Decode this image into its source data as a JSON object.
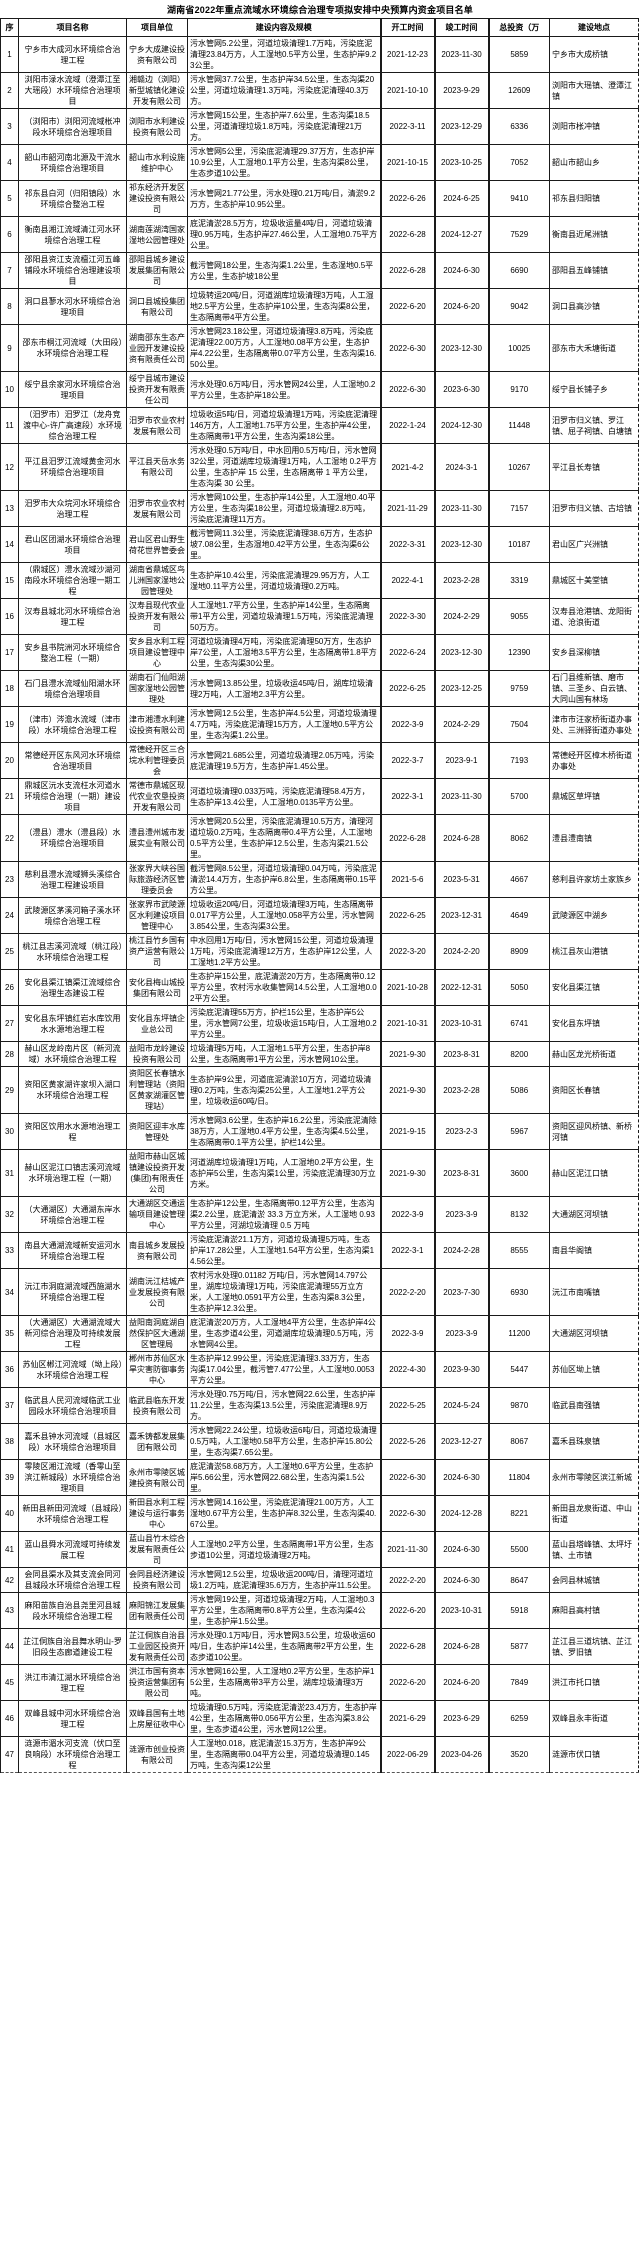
{
  "title": "湖南省2022年重点流域水环境综合治理专项拟安排中央预算内资金项目名单",
  "table": {
    "headers": [
      "序",
      "项目名称",
      "项目单位",
      "建设内容及规模",
      "开工时间",
      "竣工时间",
      "总投资（万",
      "建设地点"
    ],
    "rows": [
      {
        "no": 1,
        "name": "宁乡市大成河水环境综合治理工程",
        "unit": "宁乡大成建设投资有限公司",
        "content": "污水管网5.2公里，河道垃圾清理1.7万吨，污染底泥清理23.84万方，人工湿地0.5平方公里，生态护岸9.23公里。",
        "start": "2021-12-23",
        "end": "2023-11-30",
        "invest": "5859",
        "location": "宁乡市大成桥镇"
      },
      {
        "no": 2,
        "name": "浏阳市渌水流域（澄潭江至大瑶段）水环境综合治理项目",
        "unit": "湘赣边（浏阳）新型城镇化建设开发有限公司",
        "content": "污水管网37.7公里，生态护岸34.5公里，生态沟渠20公里，河道垃圾清理1.3万吨，污染底泥清理40.3万方。",
        "start": "2021-10-10",
        "end": "2023-9-29",
        "invest": "12609",
        "location": "浏阳市大瑶镇、澄潭江镇"
      },
      {
        "no": 3,
        "name": "（浏阳市）浏阳河流域枨冲段水环境综合治理项目",
        "unit": "浏阳市水利建设投资有限公司",
        "content": "污水管网15公里，生态护岸7.6公里，生态沟渠18.5公里，河道清理垃圾1.8万吨，污染底泥清理21万方。",
        "start": "2022-3-11",
        "end": "2023-12-29",
        "invest": "6336",
        "location": "浏阳市枨冲镇"
      },
      {
        "no": 4,
        "name": "韶山市韶河南北源及干流水环境综合治理项目",
        "unit": "韶山市水利设施维护中心",
        "content": "污水管网5公里，污染底泥清理29.37万方，生态护岸10.9公里，人工湿地0.1平方公里，生态沟渠8公里，生态步道10公里。",
        "start": "2021-10-15",
        "end": "2023-10-25",
        "invest": "7052",
        "location": "韶山市韶山乡"
      },
      {
        "no": 5,
        "name": "祁东县白河（归阳镇段）水环境综合整治工程",
        "unit": "祁东经济开发区建设投资有限公司",
        "content": "污水管网21.77公里，污水处理0.21万吨/日，清淤9.2万方，生态护岸10.95公里。",
        "start": "2022-6-26",
        "end": "2024-6-25",
        "invest": "9410",
        "location": "祁东县归阳镇"
      },
      {
        "no": 6,
        "name": "衡南县湘江流域清江河水环境综合治理工程",
        "unit": "湖南莲湖湾国家湿地公园管理处",
        "content": "底泥清淤28.5万方，垃圾收运量4吨/日，河道垃圾清理0.95万吨，生态护岸27.46公里，人工湿地0.75平方公里。",
        "start": "2022-6-28",
        "end": "2024-12-27",
        "invest": "7529",
        "location": "衡南县近尾洲镇"
      },
      {
        "no": 7,
        "name": "邵阳县资江支流檀江河五峰铺段水环境综合治理建设项目",
        "unit": "邵阳县城乡建设发展集团有限公司",
        "content": "截污管网18公里，生态沟渠1.2公里，生态湿地0.5平方公里，生态护坡18公里",
        "start": "2022-6-28",
        "end": "2024-6-30",
        "invest": "6690",
        "location": "邵阳县五峰铺镇"
      },
      {
        "no": 8,
        "name": "洞口县蓼水河水环境综合治理项目",
        "unit": "洞口县城投集团有限公司",
        "content": "垃圾转运20吨/日，河道湖库垃圾清理3万吨，人工湿地2.5平方公里，生态护岸10公里，生态沟渠8公里，生态隔离带4平方公里。",
        "start": "2022-6-20",
        "end": "2024-6-20",
        "invest": "9042",
        "location": "洞口县高沙镇"
      },
      {
        "no": 9,
        "name": "邵东市桐江河流域（大田段）水环境综合治理工程",
        "unit": "湖南邵东生态产业园开发建设投资有限责任公司",
        "content": "污水管网23.18公里，河道垃圾清理3.8万吨，污染底泥清理22.00万方，人工湿地0.08平方公里，生态护岸4.22公里，生态隔离带0.07平方公里，生态沟渠16.50公里。",
        "start": "2022-6-30",
        "end": "2023-12-30",
        "invest": "10025",
        "location": "邵东市大禾塘街道"
      },
      {
        "no": 10,
        "name": "绥宁县余家河水环境综合治理项目",
        "unit": "绥宁县城市建设投资开发有限责任公司",
        "content": "污水处理0.6万吨/日，污水管网24公里，人工湿地0.2平方公里，生态护岸18公里。",
        "start": "2022-6-30",
        "end": "2023-6-30",
        "invest": "9170",
        "location": "绥宁县长铺子乡"
      },
      {
        "no": 11,
        "name": "（汨罗市）汨罗江（龙舟竞渡中心-许广高速段）水环境综合治理工程",
        "unit": "汨罗市农业农村发展有限公司",
        "content": "垃圾收运5吨/日，河道垃圾清理1万吨，污染底泥清理146万方，人工湿地1.75平方公里，生态护岸4公里，生态隔离带1平方公里，生态沟渠18公里。",
        "start": "2022-1-24",
        "end": "2024-12-30",
        "invest": "11448",
        "location": "汨罗市归义镇、罗江镇、屈子祠镇、白塘镇"
      },
      {
        "no": 12,
        "name": "平江县汨罗江流域黄金河水环境综合治理项目",
        "unit": "平江县天岳水务有限公司",
        "content": "污水处理0.5万吨/日，中水回用0.5万吨/日，污水管网32公里，河道湖库垃圾清理1万吨，人工湿地 0.2平方公里，生态护岸 15 公里，生态隔离带 1 平方公里，生态沟渠 30 公里。",
        "start": "2021-4-2",
        "end": "2024-3-1",
        "invest": "10267",
        "location": "平江县长寿镇"
      },
      {
        "no": 13,
        "name": "汨罗市大众垸河水环境综合治理工程",
        "unit": "汨罗市农业农村发展有限公司",
        "content": "污水管网10公里，生态护岸14公里，人工湿地0.40平方公里，生态沟渠18公里，河道垃圾清理2.8万吨，污染底泥清理11万方。",
        "start": "2021-11-29",
        "end": "2023-11-30",
        "invest": "7157",
        "location": "汨罗市归义镇、古培镇"
      },
      {
        "no": 14,
        "name": "君山区团湖水环境综合治理项目",
        "unit": "君山区君山野生荷花世界管委会",
        "content": "截污管网11.3公里，污染底泥清理38.6万方，生态护坡7.08公里，生态湿地0.42平方公里，生态沟渠6公里。",
        "start": "2022-3-31",
        "end": "2023-12-30",
        "invest": "10187",
        "location": "君山区广兴洲镇"
      },
      {
        "no": 15,
        "name": "（鼎城区）澧水流域沙湖河南段水环境综合治理一期工程",
        "unit": "湖南省鼎城区鸟儿洲国家湿地公园管理处",
        "content": "生态护岸10.4公里，污染底泥清理29.95万方，人工湿地0.11平方公里，河道垃圾清理0.2万吨。",
        "start": "2022-4-1",
        "end": "2023-2-28",
        "invest": "3319",
        "location": "鼎城区十美堂镇"
      },
      {
        "no": 16,
        "name": "汉寿县城北河水环境综合治理工程",
        "unit": "汉寿县现代农业投资开发有限公司",
        "content": "人工湿地1.7平方公里，生态护岸14公里，生态隔离带1平方公里，河道垃圾清理1.5万吨，污染底泥清理50万方。",
        "start": "2022-3-30",
        "end": "2024-2-29",
        "invest": "9055",
        "location": "汉寿县沧港镇、龙阳街道、沧浪街道"
      },
      {
        "no": 17,
        "name": "安乡县书院洲河水环境综合整治工程（一期）",
        "unit": "安乡县水利工程项目建设管理中心",
        "content": "河道垃圾清理4万吨，污染底泥清理50万方，生态护岸7公里，人工湿地3.5平方公里，生态隔离带1.8平方公里，生态沟渠30公里。",
        "start": "2022-6-24",
        "end": "2023-12-30",
        "invest": "12390",
        "location": "安乡县深柳镇"
      },
      {
        "no": 18,
        "name": "石门县澧水流域仙阳湖水环境综合治理项目",
        "unit": "湖南石门仙阳湖国家湿地公园管理处",
        "content": "污水管网13.85公里，垃圾收运45吨/日，湖库垃圾清理2万吨，人工湿地2.3平方公里。",
        "start": "2022-6-25",
        "end": "2023-12-25",
        "invest": "9759",
        "location": "石门县维新镇、磨市镇、三圣乡、白云镇、大同山国有林场"
      },
      {
        "no": 19,
        "name": "（津市）涔澹水流域（津市段）水环境综合治理工程",
        "unit": "津市湘澧水利建设投资有限公司",
        "content": "污水管网12.5公里，生态护岸4.5公里，河道垃圾清理4.7万吨，污染底泥清理15万方，人工湿地0.5平方公里，生态沟渠1.2公里。",
        "start": "2022-3-9",
        "end": "2024-2-29",
        "invest": "7504",
        "location": "津市市汪家桥街道办事处、三洲驿街道办事处"
      },
      {
        "no": 20,
        "name": "常德经开区东风河水环境综合治理项目",
        "unit": "常德经开区三合垸水利管理委员会",
        "content": "污水管网21.685公里，河道垃圾清理2.05万吨，污染底泥清理19.5万方，生态护岸1.45公里。",
        "start": "2022-3-7",
        "end": "2023-9-1",
        "invest": "7193",
        "location": "常德经开区樟木桥街道办事处"
      },
      {
        "no": 21,
        "name": "鼎城区沅水支流枉水河道水环境综合治理（一期）建设项目",
        "unit": "常德市鼎城区现代农业农垦投资开发有限公司",
        "content": "河道垃圾清理0.033万吨，污染底泥清理58.4万方，生态护岸13.4公里，人工湿地0.0135平方公里。",
        "start": "2022-3-1",
        "end": "2023-11-30",
        "invest": "5700",
        "location": "鼎城区草坪镇"
      },
      {
        "no": 22,
        "name": "（澧县）澧水（澧县段）水环境综合治理项目",
        "unit": "澧县澧州城市发展实业有限公司",
        "content": "污水管网20.5公里，污染底泥清理10.5万方，清理河道垃圾0.2万吨，生态隔离带0.4平方公里，人工湿地0.5平方公里，生态护岸12.5公里，生态沟渠21.5公里。",
        "start": "2022-6-28",
        "end": "2024-6-28",
        "invest": "8062",
        "location": "澧县澧南镇"
      },
      {
        "no": 23,
        "name": "慈利县澧水流域狮头溪综合治理工程建设项目",
        "unit": "张家界大峡谷国际旅游经济区管理委员会",
        "content": "截污管网8.5公里，河道垃圾清理0.04万吨，污染底泥清淤14.4万方，生态护岸6.8公里，生态隔离带0.15平方公里。",
        "start": "2021-5-6",
        "end": "2023-5-31",
        "invest": "4667",
        "location": "慈利县许家坊土家族乡"
      },
      {
        "no": 24,
        "name": "武陵源区茅溪河箱子溪水环境综合治理工程",
        "unit": "张家界市武陵源区水利建设项目管理中心",
        "content": "垃圾收运20吨/日，河道垃圾清理3万吨，生态隔离带0.017平方公里，人工湿地0.058平方公里，污水管网3.854公里，生态沟渠3公里。",
        "start": "2022-6-25",
        "end": "2023-12-31",
        "invest": "4649",
        "location": "武陵源区中湖乡"
      },
      {
        "no": 25,
        "name": "桃江县志溪河流域（桃江段）水环境综合治理工程",
        "unit": "桃江县竹乡国有资产运营有限公司",
        "content": "中水回用1万吨/日，污水管网15公里，河道垃圾清理1万吨，污染底泥清理12万方，生态护岸12公里，人工湿地1.2平方公里。",
        "start": "2022-3-20",
        "end": "2024-2-20",
        "invest": "8909",
        "location": "桃江县灰山港镇"
      },
      {
        "no": 26,
        "name": "安化县渠江镇渠江流域综合治理生态建设工程",
        "unit": "安化县梅山城投集团有限公司",
        "content": "生态护岸15公里，底泥清淤20万方，生态隔离带0.12平方公里，农村污水收集管网14.5公里，人工湿地0.02平方公里。",
        "start": "2021-10-28",
        "end": "2022-12-31",
        "invest": "5050",
        "location": "安化县渠江镇"
      },
      {
        "no": 27,
        "name": "安化县东坪镇红岩水库饮用水水源地治理工程",
        "unit": "安化县东坪镇企业总公司",
        "content": "污染底泥清理55万方，护栏15公里，生态护岸5公里，污水管网7公里，垃圾收运15吨/日，人工湿地0.2平方公里。",
        "start": "2021-10-31",
        "end": "2023-10-31",
        "invest": "6741",
        "location": "安化县东坪镇"
      },
      {
        "no": 28,
        "name": "赫山区龙岭南片区（新河流域）水环境综合治理工程",
        "unit": "益阳市龙岭建设投资有限公司",
        "content": "垃圾清理5万吨，人工湿地1.5平方公里，生态护岸8公里，生态隔离带1平方公里，污水管网10公里。",
        "start": "2021-9-30",
        "end": "2023-8-31",
        "invest": "8200",
        "location": "赫山区龙光桥街道"
      },
      {
        "no": 29,
        "name": "资阳区黄家湖许家坝入湖口水环境综合治理工程",
        "unit": "资阳区长春镇水利管理站（资阳区黄家湖灌区管理站）",
        "content": "生态护岸9公里，河道底泥清淤10万方，河道垃圾清理0.2万吨，生态沟渠25公里，人工湿地1.2平方公里，垃圾收运60吨/日。",
        "start": "2021-9-30",
        "end": "2023-2-28",
        "invest": "5086",
        "location": "资阳区长春镇"
      },
      {
        "no": 30,
        "name": "资阳区饮用水水源地治理工程",
        "unit": "资阳区迎丰水库管理处",
        "content": "污水管网3.6公里，生态护岸16.2公里，污染底泥清除38万方，人工湿地0.4平方公里，生态沟渠4.5公里，生态隔离带0.1平方公里，护栏14公里。",
        "start": "2021-9-15",
        "end": "2023-2-3",
        "invest": "5967",
        "location": "资阳区迎风桥镇、新桥河镇"
      },
      {
        "no": 31,
        "name": "赫山区泥江口镇志溪河流域水环境治理工程（一期）",
        "unit": "益阳市赫山区城镇建设投资开发(集团)有限责任公司",
        "content": "河道湖库垃圾清理1万吨，人工湿地0.2平方公里，生态护岸5公里，生态沟渠1公里，污染底泥清理30万立方米。",
        "start": "2021-9-30",
        "end": "2023-8-31",
        "invest": "3600",
        "location": "赫山区泥江口镇"
      },
      {
        "no": 32,
        "name": "（大通湖区）大通湖东岸水环境综合治理工程",
        "unit": "大通湖区交通运输项目建设管理中心",
        "content": "生态护岸12公里，生态隔离带0.12平方公里，生态沟渠2.2公里，底泥清淤 33.3 万立方米，人工湿地 0.93 平方公里，河湖垃圾清理 0.5 万吨",
        "start": "2022-3-9",
        "end": "2023-3-9",
        "invest": "8132",
        "location": "大通湖区河坝镇"
      },
      {
        "no": 33,
        "name": "南县大通湖流域新安运河水环境综合治理工程",
        "unit": "南县城乡发展投资有限公司",
        "content": "污染底泥清淤21.1万方，河道垃圾清理5万吨，生态护岸17.28公里，人工湿地1.54平方公里，生态沟渠14.56公里。",
        "start": "2022-3-1",
        "end": "2024-2-28",
        "invest": "8555",
        "location": "南县华阁镇"
      },
      {
        "no": 34,
        "name": "沅江市洞庭湖流域西施湖水环境综合治理工程",
        "unit": "湖南沅江桔城产业发展投资有限公司",
        "content": "农村污水处理0.01182 万吨/日，污水管网14.797公里，湖库垃圾清理1万吨，污染底泥清理55万立方米，人工湿地0.0591平方公里，生态沟渠8.3公里，生态护岸12.3公里。",
        "start": "2022-2-20",
        "end": "2023-7-30",
        "invest": "6930",
        "location": "沅江市南嘴镇"
      },
      {
        "no": 35,
        "name": "（大通湖区）大通湖流域大新河综合治理及可持续发展工程",
        "unit": "益阳南洞庭湖自然保护区大通湖区管理局",
        "content": "底泥清淤20万方，人工湿地4平方公里，生态护岸4公里，生态步道4公里，河道湖库垃圾清理0.5万吨，污水管网4公里。",
        "start": "2022-3-9",
        "end": "2023-3-9",
        "invest": "11200",
        "location": "大通湖区河坝镇"
      },
      {
        "no": 36,
        "name": "苏仙区郴江河流域（坳上段）水环境综合治理工程",
        "unit": "郴州市苏仙区水旱灾害防御事务中心",
        "content": "生态护岸12.99公里，污染底泥清理3.33万方，生态沟渠17.04公里，截污管7.477公里，人工湿地0.0053平方公里。",
        "start": "2022-4-30",
        "end": "2023-9-30",
        "invest": "5447",
        "location": "苏仙区坳上镇"
      },
      {
        "no": 37,
        "name": "临武县人民河流域临武工业园段水环境综合治理项目",
        "unit": "临武县临东开发投资有限公司",
        "content": "污水处理0.75万吨/日，污水管网22.6公里，生态护岸11.2公里，生态沟渠13.5公里，污染底泥清理8.9万方。",
        "start": "2022-5-25",
        "end": "2024-5-24",
        "invest": "9870",
        "location": "临武县南强镇"
      },
      {
        "no": 38,
        "name": "嘉禾县钟水河流域（县城区段）水环境综合治理项目",
        "unit": "嘉禾铸都发展集团有限公司",
        "content": "污水管网22.24公里，垃圾收运6吨/日，河道垃圾清理0.5万吨，人工湿地0.58平方公里，生态护岸15.80公里，生态沟渠7.65公里。",
        "start": "2022-5-26",
        "end": "2023-12-27",
        "invest": "8067",
        "location": "嘉禾县珠泉镇"
      },
      {
        "no": 39,
        "name": "零陵区湘江流域（香零山至滨江新城段）水环境综合治理项目",
        "unit": "永州市零陵区城建投资有限公司",
        "content": "底泥清淤58.68万方，人工湿地0.6平方公里，生态护岸5.66公里，污水管网22.68公里，生态沟渠1.5公里。",
        "start": "2022-6-30",
        "end": "2024-6-30",
        "invest": "11804",
        "location": "永州市零陵区滨江新城"
      },
      {
        "no": 40,
        "name": "新田县新田河流域（县城段）水环境综合治理工程",
        "unit": "新田县水利工程建设与运行事务中心",
        "content": "污水管网14.16公里，污染底泥清理21.00万方，人工湿地0.67平方公里，生态护岸8.32公里，生态沟渠40.67公里。",
        "start": "2022-6-30",
        "end": "2024-12-28",
        "invest": "8221",
        "location": "新田县龙泉街道、中山街道"
      },
      {
        "no": 41,
        "name": "蓝山县舜水河流域可持续发展工程",
        "unit": "蓝山县竹木综合发展有限责任公司",
        "content": "人工湿地0.2平方公里，生态隔离带1平方公里，生态步道10公里，河道垃圾清理2万吨。",
        "start": "2021-11-30",
        "end": "2024-6-30",
        "invest": "5500",
        "location": "蓝山县塔峰镇、太坪圩镇、土市镇"
      },
      {
        "no": 42,
        "name": "会同县渠水及其支流会同河县城段水环境综合治理工程",
        "unit": "会同县经济建设投资有限公司",
        "content": "污水管网12.5公里，垃圾收运200吨/日，清理河道垃圾1.2万吨，底泥清理35.6万方，生态护岸11.5公里。",
        "start": "2022-2-20",
        "end": "2024-6-30",
        "invest": "8647",
        "location": "会同县林城镇"
      },
      {
        "no": 43,
        "name": "麻阳苗族自治县尧里河县城段水环境综合治理工程",
        "unit": "麻阳锦江发展集团有限责任公司",
        "content": "污水管网19公里，河道垃圾清理2万吨，人工湿地0.3平方公里，生态隔离带0.8平方公里，生态沟渠4公里，生态护岸1.5公里。",
        "start": "2022-6-20",
        "end": "2023-10-31",
        "invest": "5918",
        "location": "麻阳县高村镇"
      },
      {
        "no": 44,
        "name": "芷江侗族自治县舞水明山-罗旧段生态廊道建设工程",
        "unit": "芷江侗族自治县工业园区投资开发有限责任公司",
        "content": "污水处理0.1万吨/日，污水管网3.5公里，垃圾收运60吨/日，生态护岸14公里，生态隔离带2平方公里，生态步道10公里。",
        "start": "2022-6-28",
        "end": "2024-6-28",
        "invest": "5877",
        "location": "芷江县三道坑镇、芷江镇、罗旧镇"
      },
      {
        "no": 45,
        "name": "洪江市清江湖水环境综合治理工程",
        "unit": "洪江市国有资本投资运营集团有限公司",
        "content": "污水管网16公里，人工湿地0.2平方公里，生态护岸15公里，生态隔离带3平方公里，湖库垃圾清理3万吨。",
        "start": "2022-6-20",
        "end": "2024-6-20",
        "invest": "7849",
        "location": "洪江市托口镇"
      },
      {
        "no": 46,
        "name": "双峰县城中河水环境综合治理工程",
        "unit": "双峰县国有土地上房屋征收中心",
        "content": "垃圾清理0.5万吨，污染底泥清淤23.4万方，生态护岸4公里，生态隔离带0.056平方公里，生态沟渠3.8公里，生态步道4公里，污水管网12公里。",
        "start": "2021-6-29",
        "end": "2023-6-29",
        "invest": "6259",
        "location": "双峰县永丰街道"
      },
      {
        "no": 47,
        "name": "涟源市湄水河支流（伏口至良响段）水环境综合治理工程",
        "unit": "涟源市创业投资有限公司",
        "content": "人工湿地0.018，底泥清淤15.3万方，生态护岸9公里，生态隔离带0.04平方公里，河道垃圾清理0.145万吨，生态沟渠12公里",
        "start": "2022-06-29",
        "end": "2023-04-26",
        "invest": "3520",
        "location": "涟源市伏口镇"
      }
    ]
  }
}
